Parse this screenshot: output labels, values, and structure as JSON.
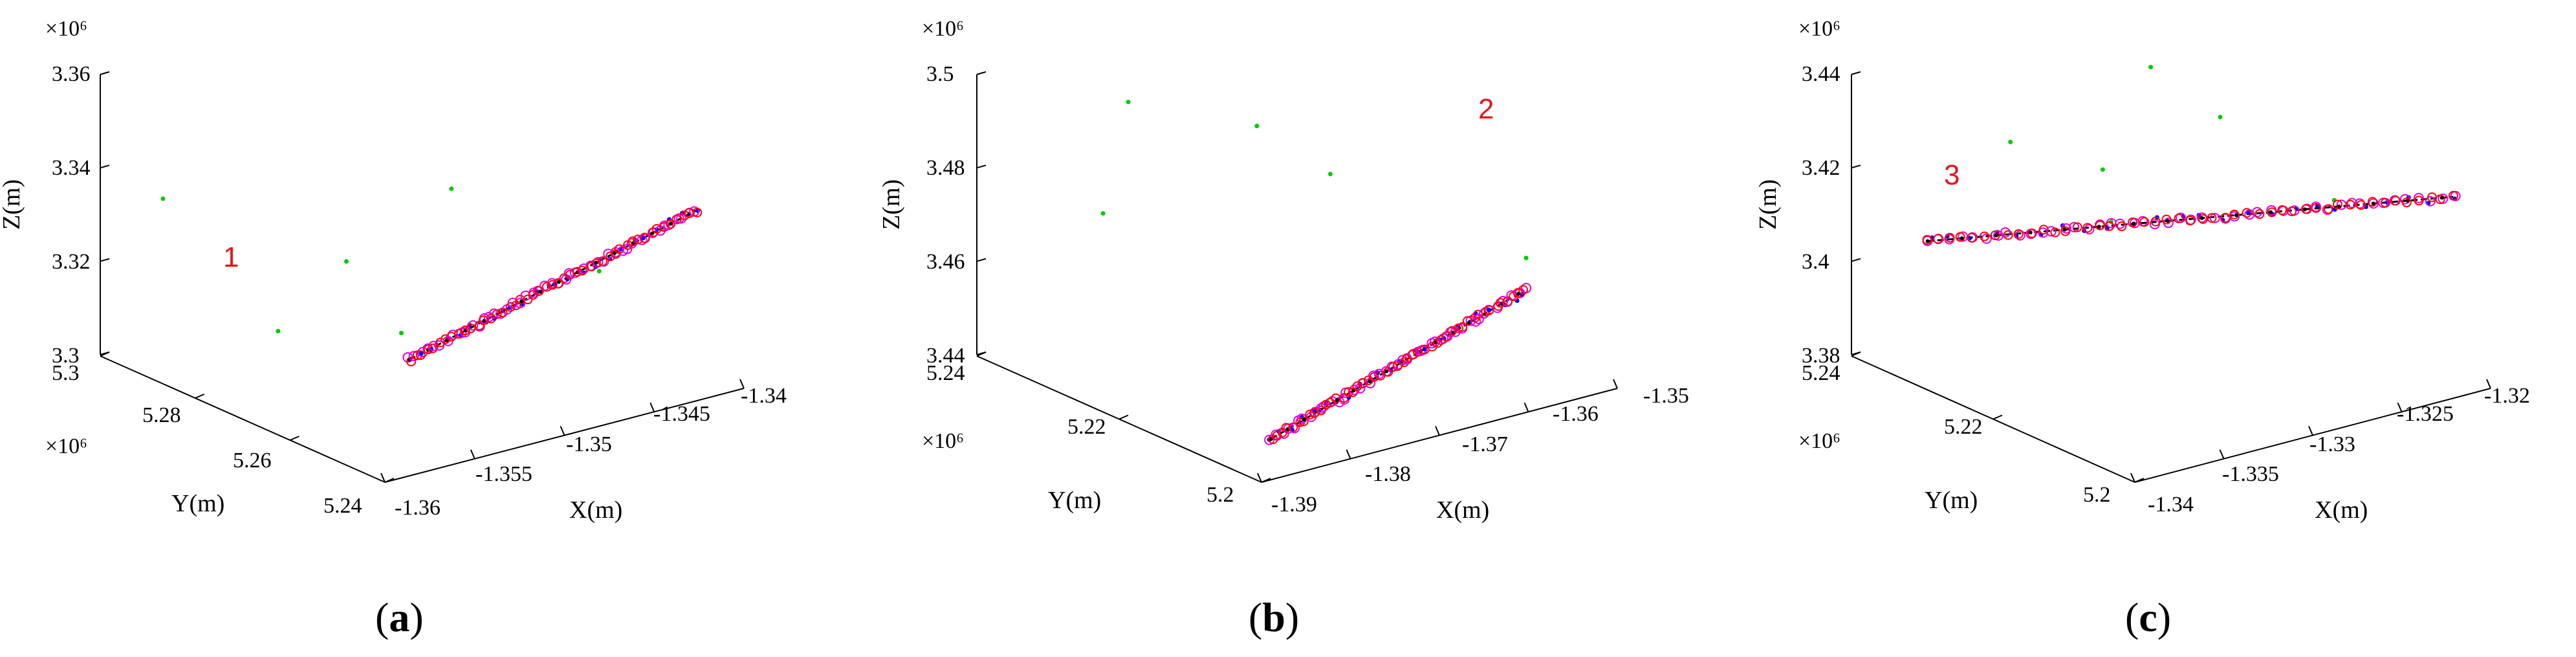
{
  "chart_data": [
    {
      "type": "scatter",
      "panel_label": "(a)",
      "caption_letter": "a",
      "trajectory_id": "1",
      "x_multiplier": "×10⁶",
      "y_multiplier": "×10⁶",
      "z_multiplier": "×10⁶",
      "xlabel": "X(m)",
      "ylabel": "Y(m)",
      "zlabel": "Z(m)",
      "x_ticks": [
        "-1.36",
        "-1.355",
        "-1.35",
        "-1.345",
        "-1.34"
      ],
      "y_ticks": [
        "5.24",
        "5.26",
        "5.28",
        "5.3"
      ],
      "z_ticks": [
        "3.3",
        "3.32",
        "3.34",
        "3.36"
      ],
      "x_range": [
        -1.36,
        -1.34
      ],
      "y_range": [
        5.24,
        5.3
      ],
      "z_range": [
        3.3,
        3.36
      ],
      "track_start": {
        "x": -1.3585,
        "y": 5.2405,
        "z": 3.3245
      },
      "track_end": {
        "x": -1.3415,
        "y": 5.2445,
        "z": 3.3375
      },
      "colors": {
        "truth": "#000000",
        "measurement": "#0000ff",
        "clutter": "#00cc00",
        "estimate_a": "#ff0000",
        "estimate_b": "#e000e0"
      }
    },
    {
      "type": "scatter",
      "panel_label": "(b)",
      "caption_letter": "b",
      "trajectory_id": "2",
      "x_multiplier": "",
      "y_multiplier": "×10⁶",
      "z_multiplier": "×10⁶",
      "xlabel": "X(m)",
      "ylabel": "Y(m)",
      "zlabel": "Z(m)",
      "x_ticks": [
        "-1.39",
        "-1.38",
        "-1.37",
        "-1.36",
        "-1.35"
      ],
      "y_ticks": [
        "5.2",
        "5.22",
        "5.24"
      ],
      "z_ticks": [
        "3.44",
        "3.46",
        "3.48",
        "3.5"
      ],
      "x_range": [
        -1.39,
        -1.35
      ],
      "y_range": [
        5.2,
        5.24
      ],
      "z_range": [
        3.44,
        3.5
      ],
      "track_start": {
        "x": -1.3885,
        "y": 5.2005,
        "z": 3.4482
      },
      "track_end": {
        "x": -1.3585,
        "y": 5.2025,
        "z": 3.4635
      },
      "colors": {
        "truth": "#000000",
        "measurement": "#0000ff",
        "clutter": "#00cc00",
        "estimate_a": "#ff0000",
        "estimate_b": "#e000e0"
      }
    },
    {
      "type": "scatter",
      "panel_label": "(c)",
      "caption_letter": "c",
      "trajectory_id": "3",
      "x_multiplier": "",
      "y_multiplier": "×10⁶",
      "z_multiplier": "×10⁶",
      "xlabel": "X(m)",
      "ylabel": "Y(m)",
      "zlabel": "Z(m)",
      "x_ticks": [
        "-1.34",
        "-1.335",
        "-1.33",
        "-1.325",
        "-1.32"
      ],
      "y_ticks": [
        "5.2",
        "5.22",
        "5.24"
      ],
      "z_ticks": [
        "3.38",
        "3.4",
        "3.42",
        "3.44"
      ],
      "x_range": [
        -1.34,
        -1.32
      ],
      "y_range": [
        5.2,
        5.24
      ],
      "z_range": [
        3.38,
        3.44
      ],
      "track_start": {
        "x": -1.3395,
        "y": 5.2305,
        "z": 3.4105
      },
      "track_end": {
        "x": -1.3215,
        "y": 5.2015,
        "z": 3.4215
      },
      "colors": {
        "truth": "#000000",
        "measurement": "#0000ff",
        "clutter": "#00cc00",
        "estimate_a": "#ff0000",
        "estimate_b": "#e000e0"
      }
    }
  ]
}
